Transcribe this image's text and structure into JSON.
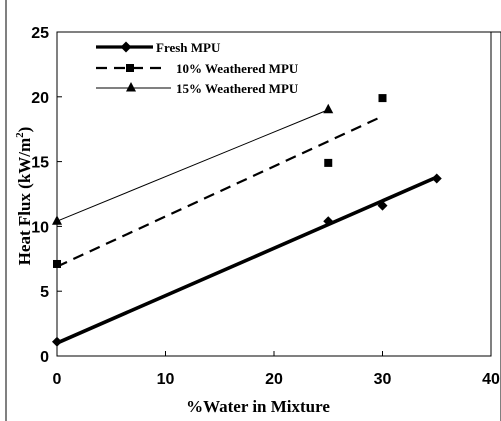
{
  "chart_data": {
    "type": "scatter",
    "title": "",
    "xlabel": "%Water in Mixture",
    "ylabel": "Heat Flux (kW/m",
    "ylabel_sup": "2",
    "ylabel_close": ")",
    "xlim": [
      0,
      40
    ],
    "ylim": [
      0,
      25
    ],
    "x_ticks": [
      "0",
      "10",
      "20",
      "30",
      "40"
    ],
    "y_ticks": [
      "0",
      "5",
      "10",
      "15",
      "20",
      "25"
    ],
    "grid": false,
    "legend_position": "top-left",
    "series": [
      {
        "name": "Fresh MPU",
        "marker": "diamond",
        "line_style": "solid-thick",
        "color": "#000000",
        "points": [
          [
            0,
            1.1
          ],
          [
            25,
            10.4
          ],
          [
            30,
            11.6
          ],
          [
            35,
            13.7
          ]
        ],
        "trendline": [
          [
            0,
            1.0
          ],
          [
            35,
            13.8
          ]
        ]
      },
      {
        "name": "10% Weathered MPU",
        "marker": "square",
        "line_style": "dashed",
        "color": "#000000",
        "points": [
          [
            0,
            7.1
          ],
          [
            25,
            14.9
          ],
          [
            30,
            19.9
          ]
        ],
        "trendline": [
          [
            0,
            6.9
          ],
          [
            30,
            18.5
          ]
        ]
      },
      {
        "name": "15% Weathered MPU",
        "marker": "triangle",
        "line_style": "solid-thin",
        "color": "#000000",
        "points": [
          [
            0,
            10.4
          ],
          [
            25,
            19.0
          ]
        ],
        "trendline": [
          [
            0,
            10.4
          ],
          [
            25,
            19.0
          ]
        ]
      }
    ]
  }
}
